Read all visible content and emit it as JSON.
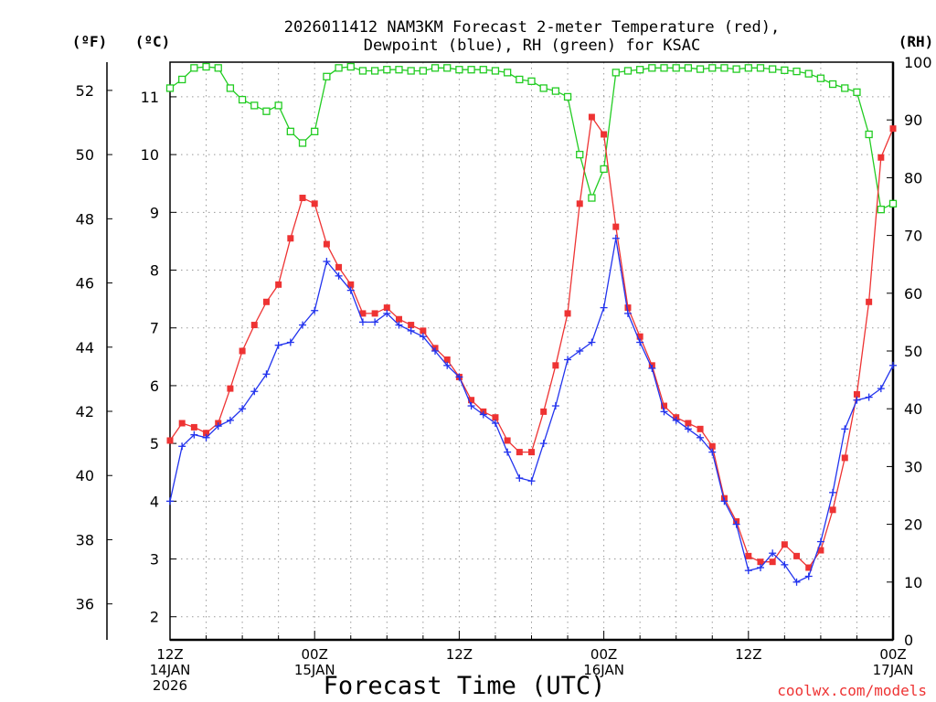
{
  "chart_data": {
    "type": "line",
    "title_line1": "2026011412 NAM3KM Forecast 2-meter Temperature (red),",
    "title_line2": "Dewpoint (blue), RH (green) for KSAC",
    "xlabel": "Forecast Time (UTC)",
    "credit": "coolwx.com/models",
    "units": {
      "fahrenheit": "(ºF)",
      "celsius": "(ºC)",
      "rh": "(RH)"
    },
    "x_range_hours": [
      0,
      60
    ],
    "celsius_range": [
      1.6,
      11.6
    ],
    "rh_range": [
      0,
      100
    ],
    "grid": true,
    "celsius_ticks": [
      2,
      3,
      4,
      5,
      6,
      7,
      8,
      9,
      10,
      11
    ],
    "fahrenheit_ticks": [
      36,
      38,
      40,
      42,
      44,
      46,
      48,
      50,
      52
    ],
    "rh_ticks": [
      0,
      10,
      20,
      30,
      40,
      50,
      60,
      70,
      80,
      90,
      100
    ],
    "x_ticks": [
      {
        "hour": 0,
        "lines": [
          "12Z",
          "14JAN",
          "2026"
        ]
      },
      {
        "hour": 12,
        "lines": [
          "00Z",
          "15JAN"
        ]
      },
      {
        "hour": 24,
        "lines": [
          "12Z"
        ]
      },
      {
        "hour": 36,
        "lines": [
          "00Z",
          "16JAN"
        ]
      },
      {
        "hour": 48,
        "lines": [
          "12Z"
        ]
      },
      {
        "hour": 60,
        "lines": [
          "00Z",
          "17JAN"
        ]
      }
    ],
    "colors": {
      "temperature": "#ee3333",
      "dewpoint": "#2233ee",
      "rh": "#22cc22"
    },
    "series": [
      {
        "name": "Temperature",
        "unit": "C",
        "x": [
          0,
          1,
          2,
          3,
          4,
          5,
          6,
          7,
          8,
          9,
          10,
          11,
          12,
          13,
          14,
          15,
          16,
          17,
          18,
          19,
          20,
          21,
          22,
          23,
          24,
          25,
          26,
          27,
          28,
          29,
          30,
          31,
          32,
          33,
          34,
          35,
          36,
          37,
          38,
          39,
          40,
          41,
          42,
          43,
          44,
          45,
          46,
          47,
          48,
          49,
          50,
          51,
          52,
          53,
          54,
          55,
          56,
          57,
          58,
          59,
          60
        ],
        "values": [
          5.05,
          5.35,
          5.28,
          5.18,
          5.35,
          5.95,
          6.6,
          7.05,
          7.45,
          7.75,
          8.55,
          9.25,
          9.15,
          8.45,
          8.05,
          7.75,
          7.25,
          7.25,
          7.35,
          7.15,
          7.05,
          6.95,
          6.65,
          6.45,
          6.15,
          5.75,
          5.55,
          5.45,
          5.05,
          4.85,
          4.85,
          5.55,
          6.35,
          7.25,
          9.15,
          10.65,
          10.35,
          8.75,
          7.35,
          6.85,
          6.35,
          5.65,
          5.45,
          5.35,
          5.25,
          4.95,
          4.05,
          3.65,
          3.05,
          2.95,
          2.95,
          3.25,
          3.05,
          2.85,
          3.15,
          3.85,
          4.75,
          5.85,
          7.45,
          9.95,
          10.45
        ]
      },
      {
        "name": "Dewpoint",
        "unit": "C",
        "x": [
          0,
          1,
          2,
          3,
          4,
          5,
          6,
          7,
          8,
          9,
          10,
          11,
          12,
          13,
          14,
          15,
          16,
          17,
          18,
          19,
          20,
          21,
          22,
          23,
          24,
          25,
          26,
          27,
          28,
          29,
          30,
          31,
          32,
          33,
          34,
          35,
          36,
          37,
          38,
          39,
          40,
          41,
          42,
          43,
          44,
          45,
          46,
          47,
          48,
          49,
          50,
          51,
          52,
          53,
          54,
          55,
          56,
          57,
          58,
          59,
          60
        ],
        "values": [
          4.0,
          4.95,
          5.15,
          5.1,
          5.3,
          5.4,
          5.6,
          5.9,
          6.2,
          6.7,
          6.75,
          7.05,
          7.3,
          8.15,
          7.9,
          7.65,
          7.1,
          7.1,
          7.25,
          7.05,
          6.95,
          6.85,
          6.6,
          6.35,
          6.15,
          5.65,
          5.5,
          5.35,
          4.85,
          4.4,
          4.35,
          5.0,
          5.65,
          6.45,
          6.6,
          6.75,
          7.35,
          8.55,
          7.25,
          6.75,
          6.3,
          5.55,
          5.4,
          5.25,
          5.1,
          4.85,
          4.0,
          3.6,
          2.8,
          2.85,
          3.1,
          2.9,
          2.6,
          2.7,
          3.3,
          4.15,
          5.25,
          5.75,
          5.8,
          5.95,
          6.35
        ]
      },
      {
        "name": "RH",
        "unit": "%",
        "x": [
          0,
          1,
          2,
          3,
          4,
          5,
          6,
          7,
          8,
          9,
          10,
          11,
          12,
          13,
          14,
          15,
          16,
          17,
          18,
          19,
          20,
          21,
          22,
          23,
          24,
          25,
          26,
          27,
          28,
          29,
          30,
          31,
          32,
          33,
          34,
          35,
          36,
          37,
          38,
          39,
          40,
          41,
          42,
          43,
          44,
          45,
          46,
          47,
          48,
          49,
          50,
          51,
          52,
          53,
          54,
          55,
          56,
          57,
          58,
          59,
          60
        ],
        "values": [
          95.5,
          97.0,
          99.0,
          99.2,
          99.0,
          95.5,
          93.5,
          92.5,
          91.5,
          92.5,
          88.0,
          86.0,
          88.0,
          97.5,
          99.0,
          99.2,
          98.5,
          98.5,
          98.7,
          98.7,
          98.5,
          98.5,
          99.0,
          99.0,
          98.7,
          98.7,
          98.7,
          98.5,
          98.2,
          97.0,
          96.7,
          95.5,
          95.0,
          94.0,
          84.0,
          76.5,
          81.5,
          98.2,
          98.5,
          98.7,
          99.0,
          99.0,
          99.0,
          99.0,
          98.8,
          99.0,
          99.0,
          98.8,
          99.0,
          99.0,
          98.8,
          98.6,
          98.4,
          98.0,
          97.2,
          96.2,
          95.5,
          94.8,
          87.5,
          74.5,
          75.5
        ]
      }
    ]
  }
}
